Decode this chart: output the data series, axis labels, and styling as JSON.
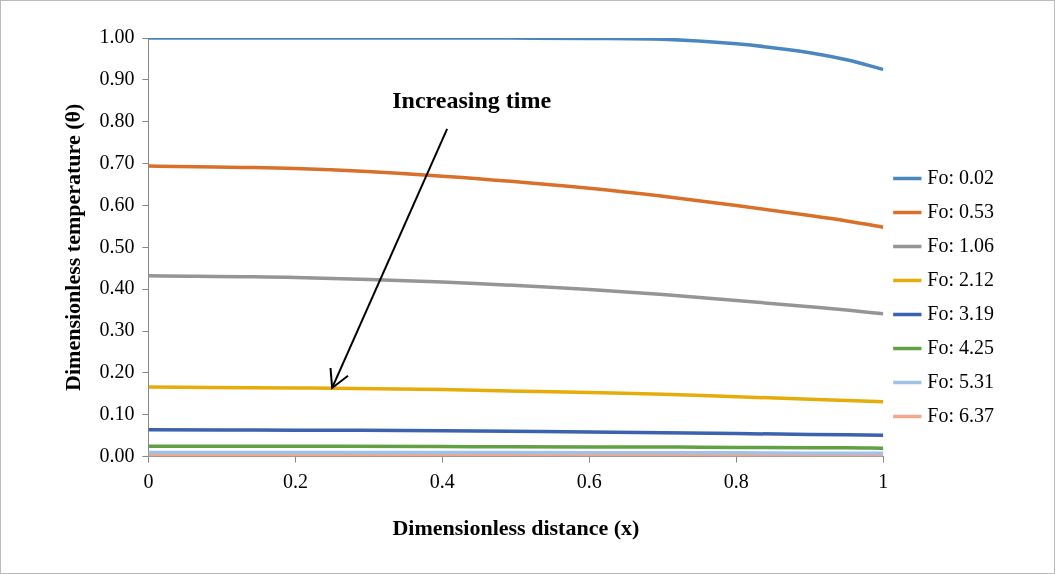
{
  "chart_data": {
    "type": "line",
    "xlabel": "Dimensionless distance (x)",
    "ylabel": "Dimensionless temperature (θ)",
    "annotations": [
      {
        "text": "Increasing time",
        "x": 0.25,
        "y": 0.164
      }
    ],
    "x": [
      0,
      0.2,
      0.4,
      0.6,
      0.7,
      0.8,
      0.9,
      0.95,
      1
    ],
    "series": [
      {
        "name": "Fo: 0.02",
        "color": "#4a86c0",
        "values": [
          1,
          1,
          1,
          0.999,
          0.997,
          0.986,
          0.965,
          0.948,
          0.925
        ]
      },
      {
        "name": "Fo: 0.53",
        "color": "#d9702a",
        "values": [
          0.694,
          0.688,
          0.67,
          0.641,
          0.622,
          0.6,
          0.576,
          0.563,
          0.548
        ]
      },
      {
        "name": "Fo: 1.06",
        "color": "#959595",
        "values": [
          0.432,
          0.428,
          0.417,
          0.399,
          0.387,
          0.373,
          0.358,
          0.35,
          0.341
        ]
      },
      {
        "name": "Fo: 2.12",
        "color": "#e6ad0a",
        "values": [
          0.166,
          0.164,
          0.16,
          0.153,
          0.149,
          0.143,
          0.137,
          0.134,
          0.131
        ]
      },
      {
        "name": "Fo: 3.19",
        "color": "#3a62ae",
        "values": [
          0.064,
          0.063,
          0.062,
          0.059,
          0.057,
          0.055,
          0.053,
          0.052,
          0.051
        ]
      },
      {
        "name": "Fo: 4.25",
        "color": "#62a044",
        "values": [
          0.025,
          0.025,
          0.024,
          0.023,
          0.023,
          0.022,
          0.021,
          0.021,
          0.02
        ]
      },
      {
        "name": "Fo: 5.31",
        "color": "#9fc3e8",
        "values": [
          0.01,
          0.01,
          0.01,
          0.009,
          0.009,
          0.009,
          0.008,
          0.008,
          0.008
        ]
      },
      {
        "name": "Fo: 6.37",
        "color": "#f2a68a",
        "values": [
          0.004,
          0.004,
          0.004,
          0.004,
          0.004,
          0.003,
          0.003,
          0.003,
          0.003
        ]
      }
    ],
    "xlim": [
      0,
      1
    ],
    "xticks": [
      0,
      0.2,
      0.4,
      0.6,
      0.8,
      1
    ],
    "ylim": [
      0,
      1
    ],
    "yticks": [
      {
        "value": 0,
        "label": "0.00"
      },
      {
        "value": 0.1,
        "label": "0.10"
      },
      {
        "value": 0.2,
        "label": "0.20"
      },
      {
        "value": 0.3,
        "label": "0.30"
      },
      {
        "value": 0.4,
        "label": "0.40"
      },
      {
        "value": 0.5,
        "label": "0.50"
      },
      {
        "value": 0.6,
        "label": "0.60"
      },
      {
        "value": 0.7,
        "label": "0.70"
      },
      {
        "value": 0.8,
        "label": "0.80"
      },
      {
        "value": 0.9,
        "label": "0.90"
      },
      {
        "value": 1,
        "label": "1.00"
      }
    ],
    "grid": false,
    "legend": "right",
    "marker": "none",
    "line_style": "solid"
  }
}
